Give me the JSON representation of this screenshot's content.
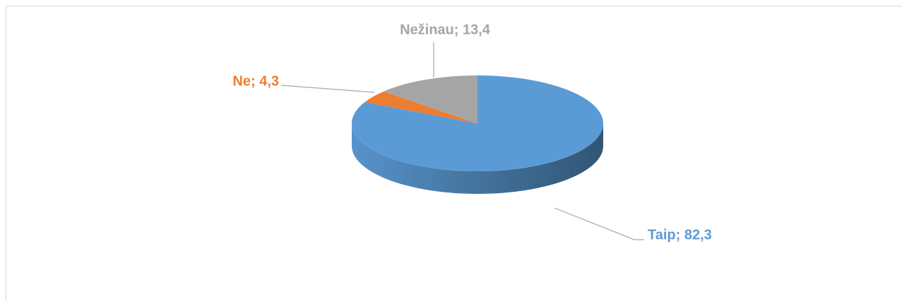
{
  "chart_data": {
    "type": "pie",
    "values": [
      82.3,
      4.3,
      13.4
    ],
    "value_labels": [
      "Taip; 82,3",
      "Ne; 4,3",
      "Nežinau; 13,4"
    ],
    "colors": [
      "#5b9bd5",
      "#ed7d31",
      "#a5a5a5"
    ]
  }
}
